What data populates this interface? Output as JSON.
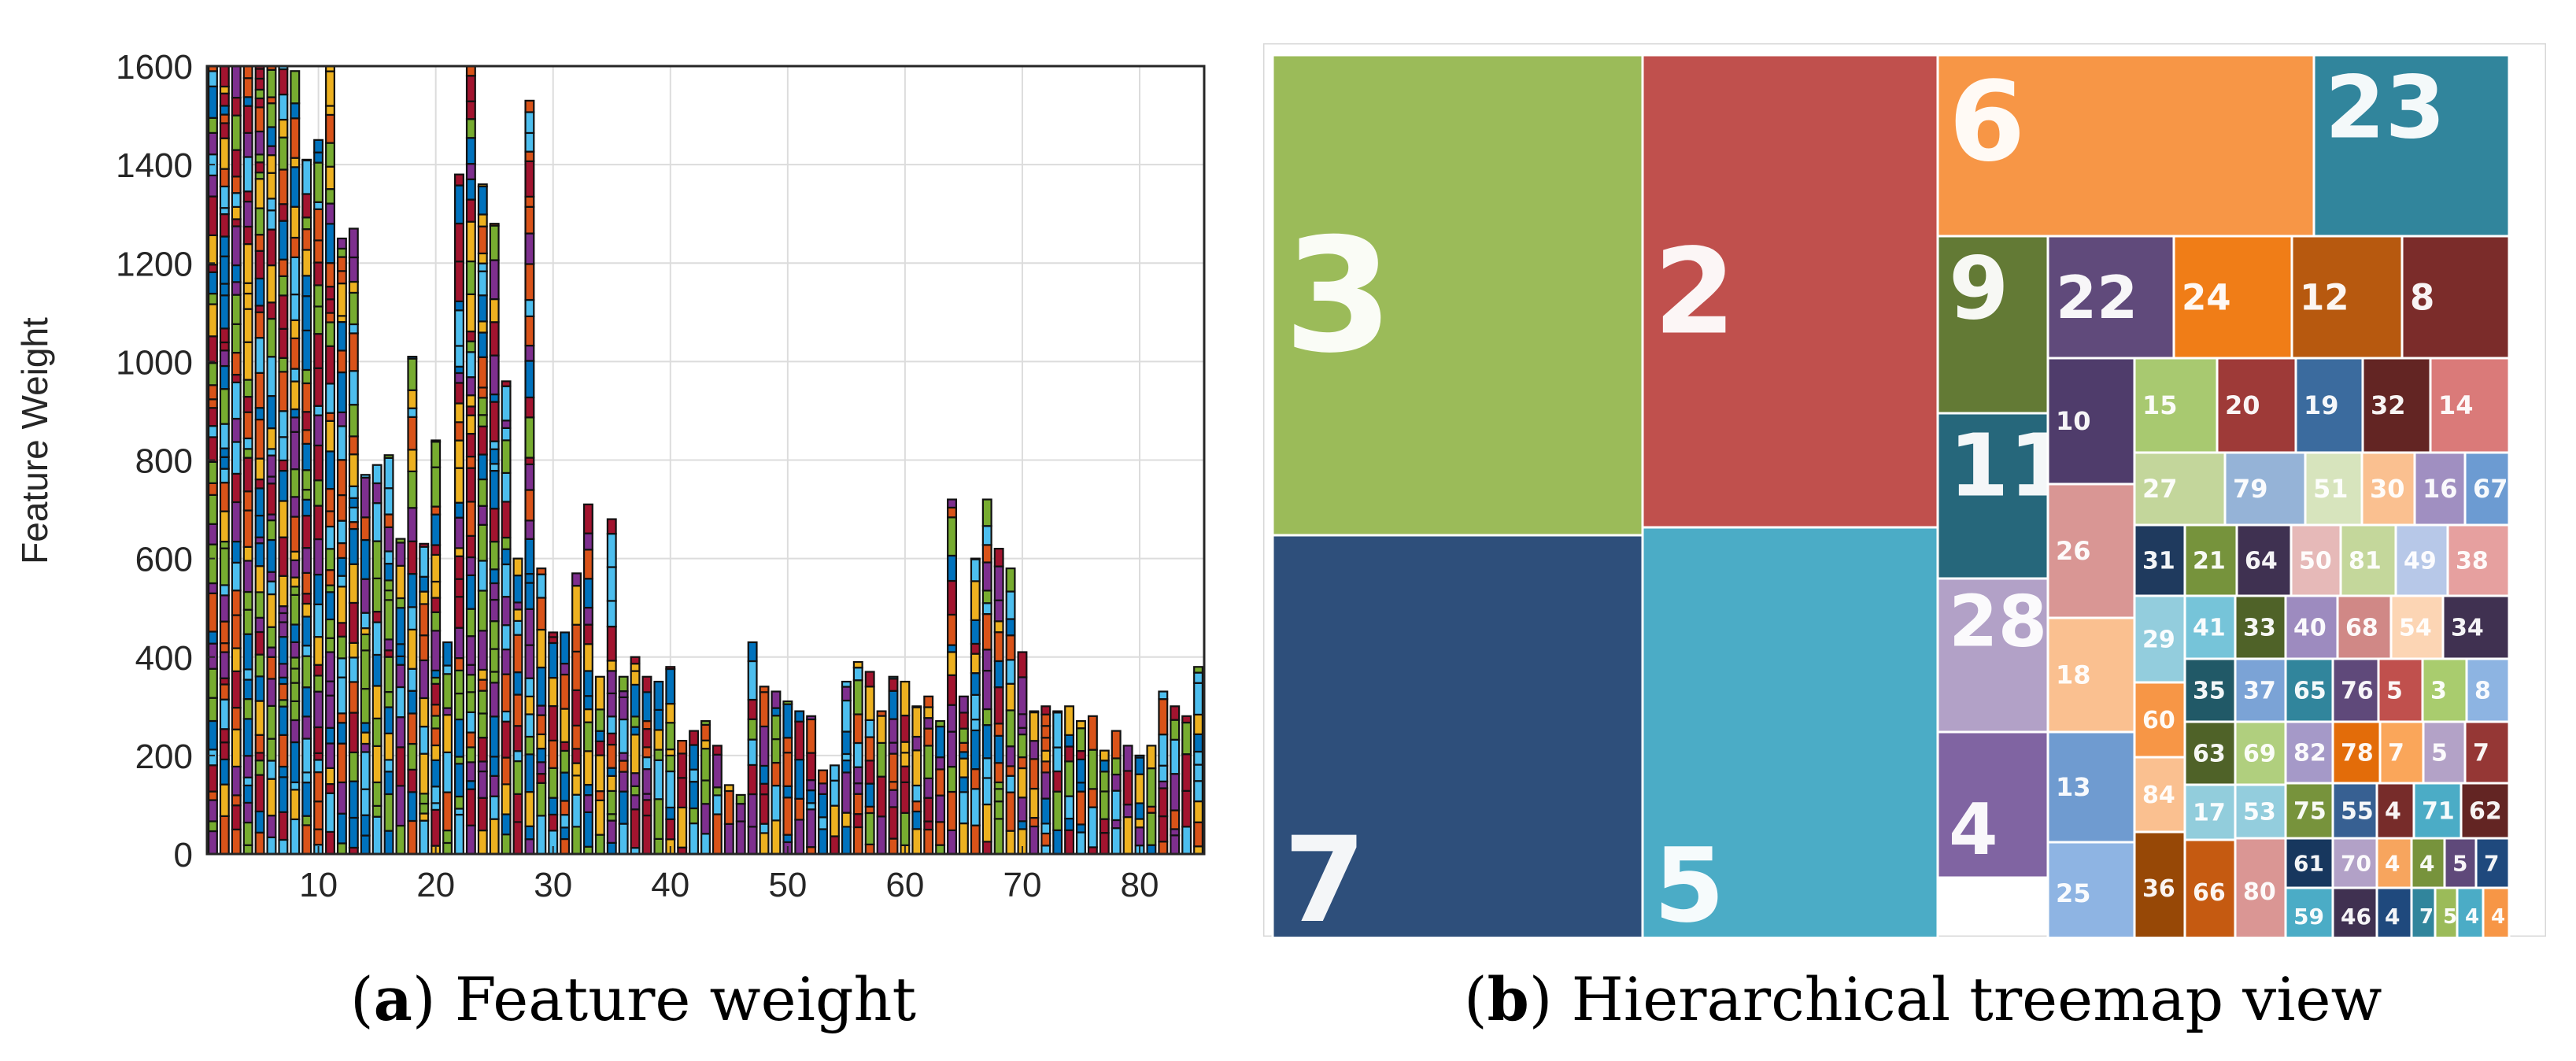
{
  "chart_data": [
    {
      "type": "bar",
      "subtype": "stacked",
      "panel_id": "a",
      "title": "",
      "xlabel": "",
      "ylabel": "Feature Weight",
      "ylim": [
        0,
        1600
      ],
      "xlim": [
        0.5,
        85.5
      ],
      "xticks": [
        10,
        20,
        30,
        40,
        50,
        60,
        70,
        80
      ],
      "yticks": [
        0,
        200,
        400,
        600,
        800,
        1000,
        1200,
        1400,
        1600
      ],
      "grid": true,
      "segment_colors": [
        "#0072BD",
        "#77AC30",
        "#A2142F",
        "#7E2F8E",
        "#EDB120",
        "#4DBEEE",
        "#D95319"
      ],
      "categories": [
        1,
        2,
        3,
        4,
        5,
        6,
        7,
        8,
        9,
        10,
        11,
        12,
        13,
        14,
        15,
        16,
        17,
        18,
        19,
        20,
        21,
        22,
        23,
        24,
        25,
        26,
        27,
        28,
        29,
        30,
        31,
        32,
        33,
        34,
        35,
        36,
        37,
        38,
        39,
        40,
        41,
        42,
        43,
        44,
        45,
        46,
        47,
        48,
        49,
        50,
        51,
        52,
        53,
        54,
        55,
        56,
        57,
        58,
        59,
        60,
        61,
        62,
        63,
        64,
        65,
        66,
        67,
        68,
        69,
        70,
        71,
        72,
        73,
        74,
        75,
        76,
        77,
        78,
        79,
        80,
        81,
        82,
        83,
        84,
        85
      ],
      "values": [
        1600,
        1600,
        1600,
        1600,
        1600,
        1600,
        1600,
        1590,
        1410,
        1450,
        1600,
        1250,
        1270,
        770,
        790,
        810,
        640,
        1010,
        630,
        840,
        430,
        1380,
        1600,
        1360,
        1280,
        960,
        600,
        1530,
        580,
        450,
        450,
        570,
        710,
        360,
        680,
        360,
        400,
        360,
        350,
        380,
        230,
        250,
        270,
        220,
        140,
        120,
        430,
        340,
        330,
        310,
        290,
        280,
        170,
        180,
        350,
        390,
        370,
        290,
        360,
        350,
        300,
        320,
        270,
        720,
        320,
        600,
        720,
        620,
        580,
        410,
        290,
        300,
        290,
        300,
        270,
        280,
        210,
        250,
        220,
        200,
        220,
        330,
        300,
        280,
        380
      ],
      "caption_label": "a",
      "caption_text": "Feature weight"
    },
    {
      "type": "treemap",
      "panel_id": "b",
      "title": "",
      "items": [
        {
          "label": "3",
          "color": "#9BBB59"
        },
        {
          "label": "7",
          "color": "#2E4F7B"
        },
        {
          "label": "2",
          "color": "#C0504D"
        },
        {
          "label": "5",
          "color": "#4BACC6"
        },
        {
          "label": "6",
          "color": "#F79646"
        },
        {
          "label": "23",
          "color": "#31859C"
        },
        {
          "label": "9",
          "color": "#637A35"
        },
        {
          "label": "11",
          "color": "#26677B"
        },
        {
          "label": "28",
          "color": "#B2A1C7"
        },
        {
          "label": "4",
          "color": "#8064A2"
        },
        {
          "label": "22",
          "color": "#604A7B"
        },
        {
          "label": "24",
          "color": "#F07D17"
        },
        {
          "label": "12",
          "color": "#B7590F"
        },
        {
          "label": "8",
          "color": "#7B2C2A"
        },
        {
          "label": "10",
          "color": "#4F3C6B"
        },
        {
          "label": "15",
          "color": "#A8C970"
        },
        {
          "label": "20",
          "color": "#9E3A38"
        },
        {
          "label": "19",
          "color": "#3B6B9E"
        },
        {
          "label": "32",
          "color": "#632523"
        },
        {
          "label": "14",
          "color": "#DA7A79"
        },
        {
          "label": "27",
          "color": "#C3D69B"
        },
        {
          "label": "79",
          "color": "#95B3D7"
        },
        {
          "label": "51",
          "color": "#D7E4BD"
        },
        {
          "label": "30",
          "color": "#FAC090"
        },
        {
          "label": "16",
          "color": "#A08FC1"
        },
        {
          "label": "67",
          "color": "#6C9BD2"
        },
        {
          "label": "26",
          "color": "#D99694"
        },
        {
          "label": "31",
          "color": "#1F3A5E"
        },
        {
          "label": "21",
          "color": "#76933C"
        },
        {
          "label": "64",
          "color": "#3F3151"
        },
        {
          "label": "50",
          "color": "#E6B9B8"
        },
        {
          "label": "81",
          "color": "#C4D79B"
        },
        {
          "label": "49",
          "color": "#B7C8E8"
        },
        {
          "label": "38",
          "color": "#E6A09F"
        },
        {
          "label": "18",
          "color": "#FAC090"
        },
        {
          "label": "29",
          "color": "#93CDDD"
        },
        {
          "label": "41",
          "color": "#76C4D9"
        },
        {
          "label": "33",
          "color": "#4F6228"
        },
        {
          "label": "40",
          "color": "#9D8BBF"
        },
        {
          "label": "68",
          "color": "#D08886"
        },
        {
          "label": "54",
          "color": "#FCD5B4"
        },
        {
          "label": "34",
          "color": "#403151"
        },
        {
          "label": "35",
          "color": "#215967"
        },
        {
          "label": "37",
          "color": "#7BA3D6"
        },
        {
          "label": "65",
          "color": "#31859C"
        },
        {
          "label": "76",
          "color": "#5F497A"
        },
        {
          "label": "5",
          "color": "#C0504D"
        },
        {
          "label": "3",
          "color": "#A9CC6E"
        },
        {
          "label": "8",
          "color": "#8DB4E2"
        },
        {
          "label": "60",
          "color": "#F79646"
        },
        {
          "label": "82",
          "color": "#A599C8"
        },
        {
          "label": "78",
          "color": "#E36C09"
        },
        {
          "label": "7",
          "color": "#FAA65A"
        },
        {
          "label": "5",
          "color": "#B3A2C7"
        },
        {
          "label": "7",
          "color": "#953735"
        },
        {
          "label": "13",
          "color": "#6F9BD0"
        },
        {
          "label": "63",
          "color": "#4F6228"
        },
        {
          "label": "69",
          "color": "#B0CF7E"
        },
        {
          "label": "75",
          "color": "#77933C"
        },
        {
          "label": "55",
          "color": "#376092"
        },
        {
          "label": "4",
          "color": "#772C2A"
        },
        {
          "label": "71",
          "color": "#4BACC6"
        },
        {
          "label": "62",
          "color": "#632523"
        },
        {
          "label": "84",
          "color": "#FAC090"
        },
        {
          "label": "17",
          "color": "#92CDDC"
        },
        {
          "label": "53",
          "color": "#93CDDD"
        },
        {
          "label": "61",
          "color": "#17375E"
        },
        {
          "label": "70",
          "color": "#B2A1C7"
        },
        {
          "label": "4",
          "color": "#F7A55E"
        },
        {
          "label": "4",
          "color": "#77933C"
        },
        {
          "label": "5",
          "color": "#5F497A"
        },
        {
          "label": "7",
          "color": "#1F497D"
        },
        {
          "label": "25",
          "color": "#8EB4E3"
        },
        {
          "label": "36",
          "color": "#974806"
        },
        {
          "label": "66",
          "color": "#C55A11"
        },
        {
          "label": "80",
          "color": "#DA9694"
        },
        {
          "label": "59",
          "color": "#4BACC6"
        },
        {
          "label": "46",
          "color": "#403151"
        },
        {
          "label": "4",
          "color": "#1F497D"
        },
        {
          "label": "7",
          "color": "#31859C"
        },
        {
          "label": "5",
          "color": "#9BBB59"
        },
        {
          "label": "4",
          "color": "#4BACC6"
        },
        {
          "label": "4",
          "color": "#F79646"
        }
      ],
      "caption_label": "b",
      "caption_text": "Hierarchical treemap view"
    }
  ]
}
